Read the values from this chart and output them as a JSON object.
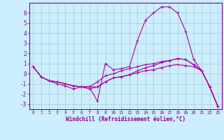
{
  "title": "",
  "xlabel": "Windchill (Refroidissement éolien,°C)",
  "ylabel": "",
  "background_color": "#cceeff",
  "grid_color": "#aacccc",
  "line_color": "#aa00aa",
  "xlim": [
    -0.5,
    23.5
  ],
  "ylim": [
    -3.5,
    7.0
  ],
  "xticks": [
    0,
    1,
    2,
    3,
    4,
    5,
    6,
    7,
    8,
    9,
    10,
    11,
    12,
    13,
    14,
    15,
    16,
    17,
    18,
    19,
    20,
    21,
    22,
    23
  ],
  "yticks": [
    -3,
    -2,
    -1,
    0,
    1,
    2,
    3,
    4,
    5,
    6
  ],
  "series": [
    [
      0.7,
      -0.3,
      -0.7,
      -1.0,
      -1.2,
      -1.5,
      -1.3,
      -1.3,
      -2.7,
      1.0,
      0.4,
      0.5,
      0.7,
      3.3,
      5.3,
      6.0,
      6.6,
      6.6,
      6.0,
      4.2,
      1.4,
      0.3,
      -1.3,
      -3.2
    ],
    [
      0.7,
      -0.3,
      -0.7,
      -0.8,
      -1.0,
      -1.2,
      -1.3,
      -1.3,
      -1.3,
      -0.8,
      -0.4,
      -0.3,
      -0.1,
      0.1,
      0.3,
      0.4,
      0.6,
      0.8,
      0.9,
      0.8,
      0.7,
      0.3,
      -1.3,
      -3.2
    ],
    [
      0.7,
      -0.3,
      -0.7,
      -0.8,
      -1.0,
      -1.2,
      -1.3,
      -1.5,
      -1.3,
      -0.8,
      -0.4,
      -0.3,
      -0.1,
      0.3,
      0.6,
      0.8,
      1.1,
      1.3,
      1.5,
      1.4,
      0.9,
      0.3,
      -1.3,
      -3.2
    ],
    [
      0.7,
      -0.3,
      -0.7,
      -0.8,
      -1.0,
      -1.2,
      -1.3,
      -1.3,
      -0.8,
      -0.2,
      0.0,
      0.3,
      0.5,
      0.7,
      0.9,
      1.0,
      1.2,
      1.3,
      1.5,
      1.4,
      0.9,
      0.3,
      -1.3,
      -3.2
    ]
  ]
}
